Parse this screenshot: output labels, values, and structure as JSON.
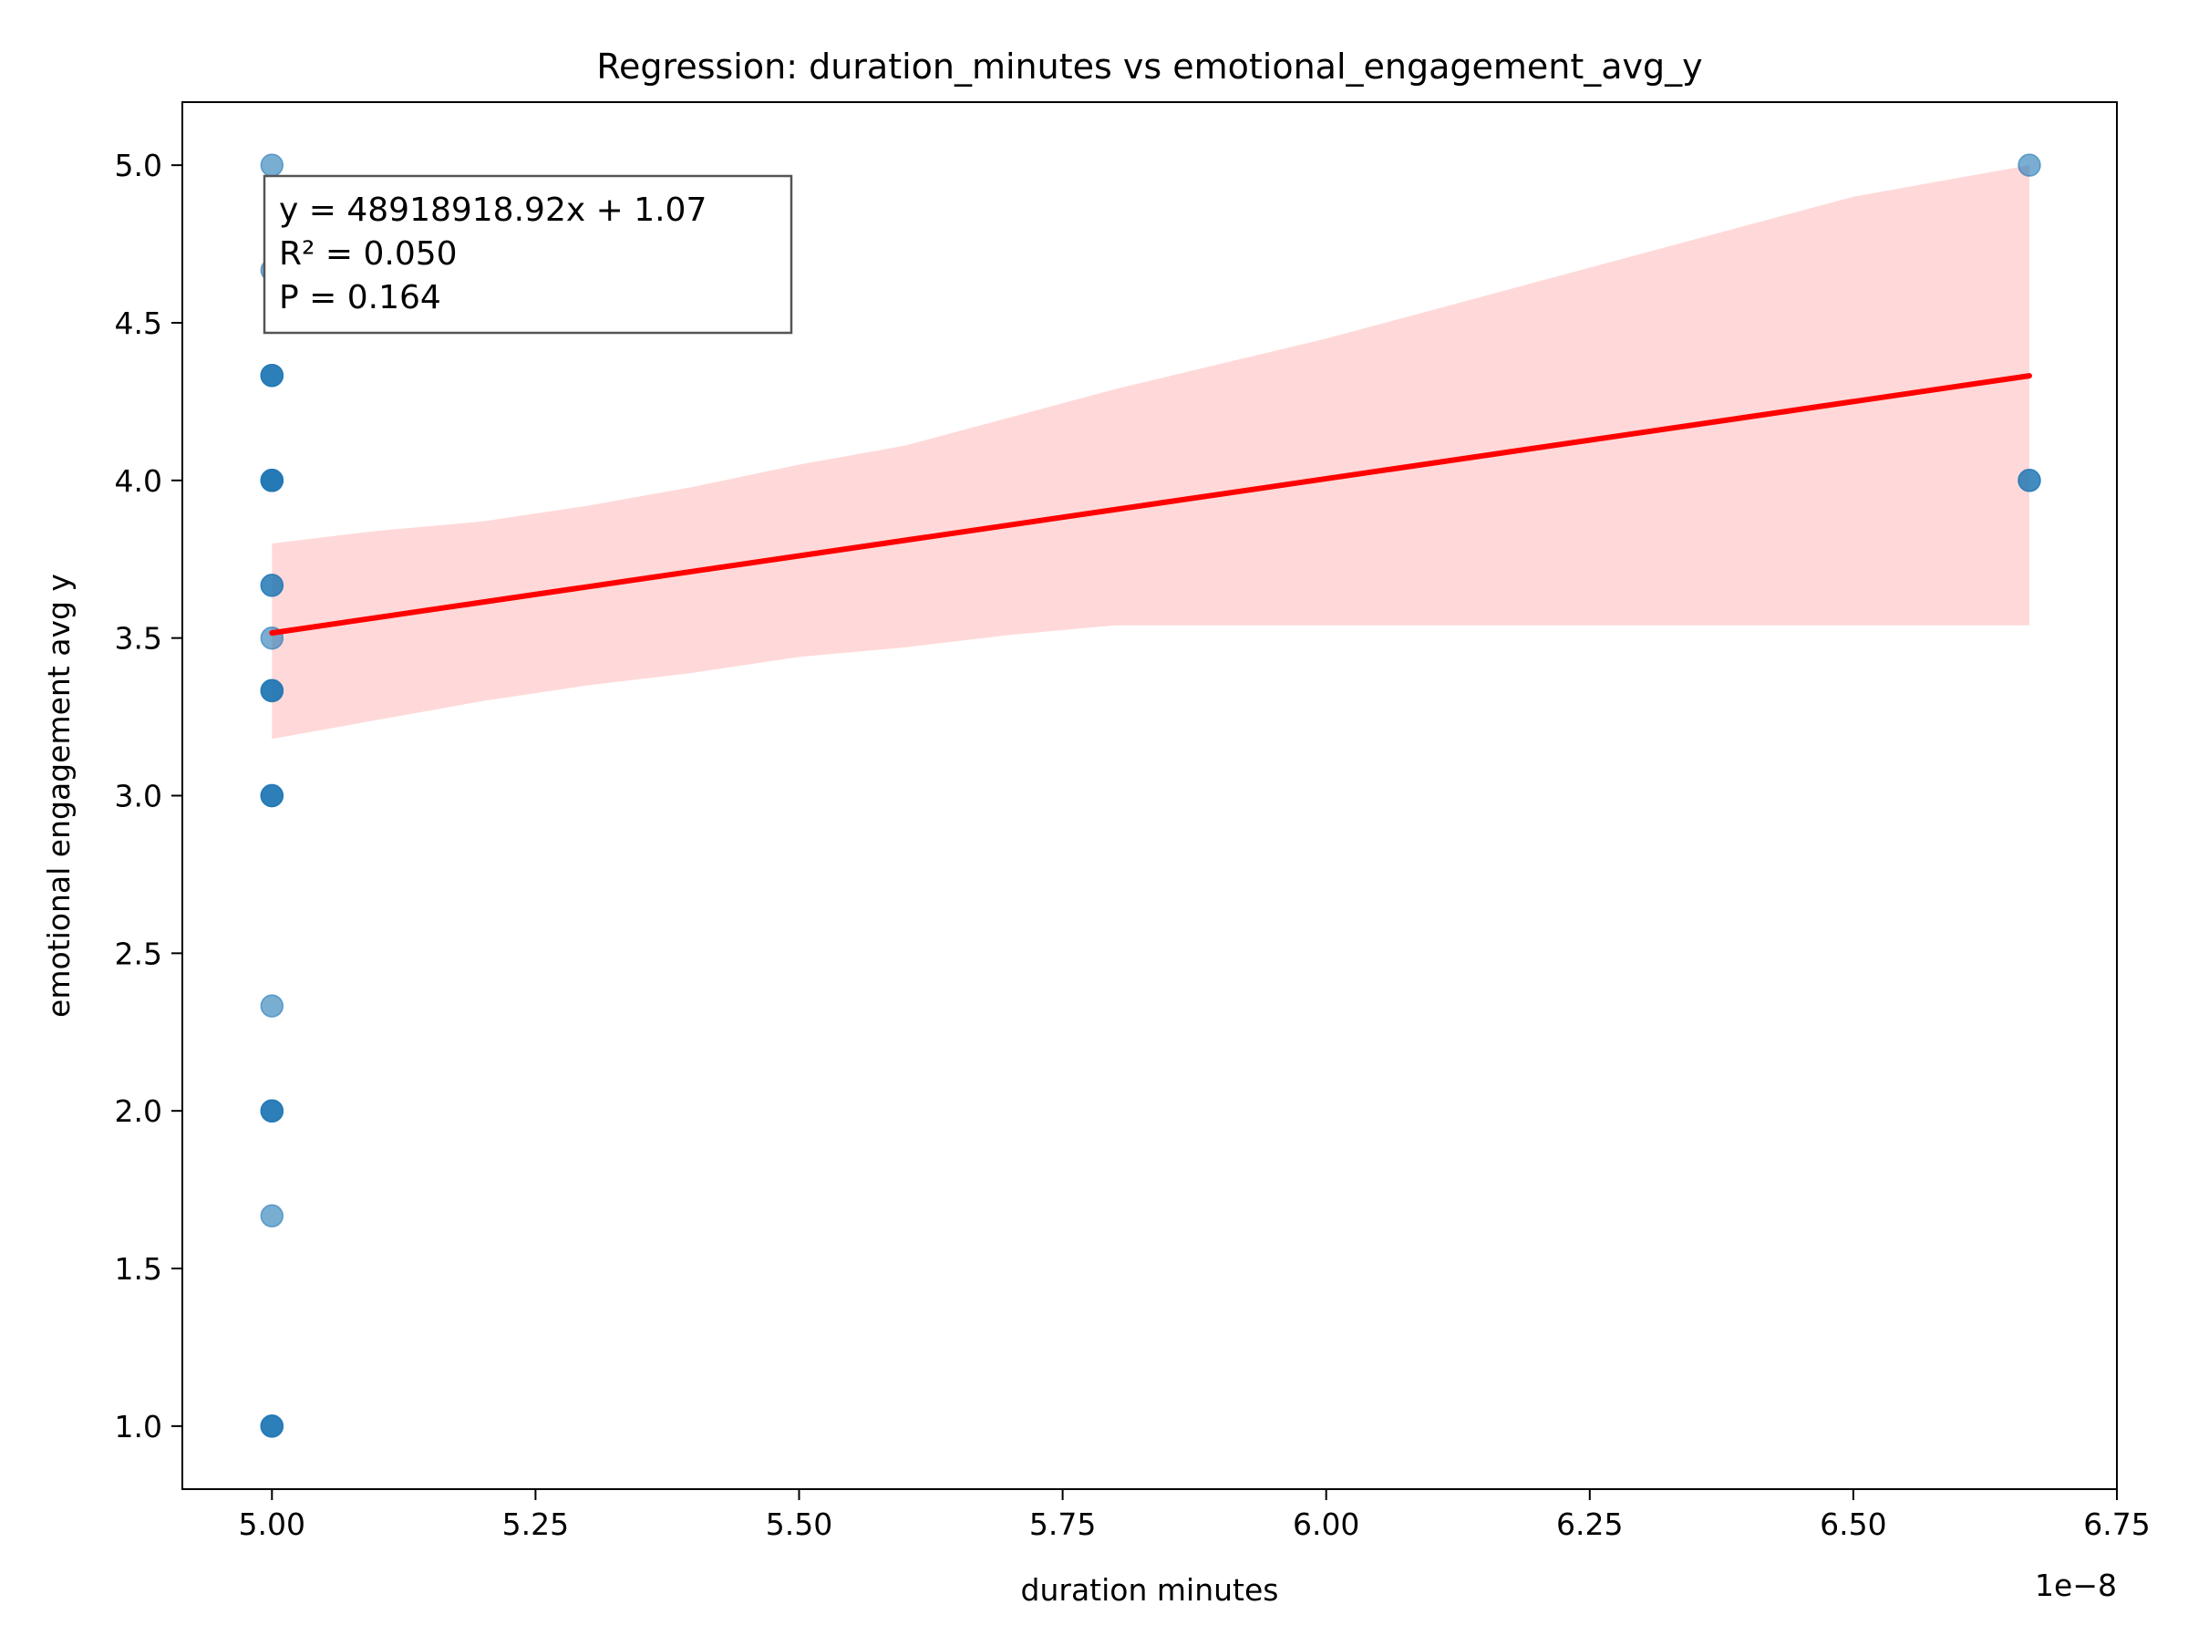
{
  "chart_data": {
    "type": "scatter",
    "title": "Regression: duration_minutes vs emotional_engagement_avg_y",
    "xlabel": "duration minutes",
    "ylabel": "emotional engagement avg y",
    "x_offset_label": "1e−8",
    "x_scale": 1e-08,
    "xlim": [
      4.915,
      6.75
    ],
    "ylim": [
      0.8,
      5.2
    ],
    "x_ticks": [
      5.0,
      5.25,
      5.5,
      5.75,
      6.0,
      6.25,
      6.5,
      6.75
    ],
    "x_tick_labels": [
      "5.00",
      "5.25",
      "5.50",
      "5.75",
      "6.00",
      "6.25",
      "6.50",
      "6.75"
    ],
    "y_ticks": [
      1.0,
      1.5,
      2.0,
      2.5,
      3.0,
      3.5,
      4.0,
      4.5,
      5.0
    ],
    "y_tick_labels": [
      "1.0",
      "1.5",
      "2.0",
      "2.5",
      "3.0",
      "3.5",
      "4.0",
      "4.5",
      "5.0"
    ],
    "grid": false,
    "series": [
      {
        "type": "scatter",
        "color": "#1f77b4",
        "points": [
          {
            "x": 5.0,
            "y": 5.0
          },
          {
            "x": 5.0,
            "y": 4.667
          },
          {
            "x": 5.0,
            "y": 4.333
          },
          {
            "x": 5.0,
            "y": 4.333
          },
          {
            "x": 5.0,
            "y": 4.333
          },
          {
            "x": 5.0,
            "y": 4.0
          },
          {
            "x": 5.0,
            "y": 4.0
          },
          {
            "x": 5.0,
            "y": 4.0
          },
          {
            "x": 5.0,
            "y": 4.0
          },
          {
            "x": 5.0,
            "y": 3.667
          },
          {
            "x": 5.0,
            "y": 3.667
          },
          {
            "x": 5.0,
            "y": 3.5
          },
          {
            "x": 5.0,
            "y": 3.333
          },
          {
            "x": 5.0,
            "y": 3.333
          },
          {
            "x": 5.0,
            "y": 3.333
          },
          {
            "x": 5.0,
            "y": 3.0
          },
          {
            "x": 5.0,
            "y": 3.0
          },
          {
            "x": 5.0,
            "y": 3.0
          },
          {
            "x": 5.0,
            "y": 2.333
          },
          {
            "x": 5.0,
            "y": 2.0
          },
          {
            "x": 5.0,
            "y": 2.0
          },
          {
            "x": 5.0,
            "y": 2.0
          },
          {
            "x": 5.0,
            "y": 1.667
          },
          {
            "x": 5.0,
            "y": 1.0
          },
          {
            "x": 5.0,
            "y": 1.0
          },
          {
            "x": 5.0,
            "y": 1.0
          },
          {
            "x": 6.667,
            "y": 5.0
          },
          {
            "x": 6.667,
            "y": 4.0
          },
          {
            "x": 6.667,
            "y": 4.0
          }
        ]
      },
      {
        "type": "line",
        "color": "#ff0000",
        "points": [
          {
            "x": 5.0,
            "y": 3.516
          },
          {
            "x": 6.667,
            "y": 4.332
          }
        ]
      },
      {
        "type": "area",
        "color": "#ff0000",
        "upper": [
          {
            "x": 5.0,
            "y": 3.8
          },
          {
            "x": 5.1,
            "y": 3.84
          },
          {
            "x": 5.2,
            "y": 3.87
          },
          {
            "x": 5.3,
            "y": 3.92
          },
          {
            "x": 5.4,
            "y": 3.98
          },
          {
            "x": 5.5,
            "y": 4.05
          },
          {
            "x": 5.6,
            "y": 4.11
          },
          {
            "x": 5.7,
            "y": 4.2
          },
          {
            "x": 5.8,
            "y": 4.29
          },
          {
            "x": 5.9,
            "y": 4.37
          },
          {
            "x": 6.0,
            "y": 4.45
          },
          {
            "x": 6.1,
            "y": 4.54
          },
          {
            "x": 6.2,
            "y": 4.63
          },
          {
            "x": 6.3,
            "y": 4.72
          },
          {
            "x": 6.4,
            "y": 4.81
          },
          {
            "x": 6.5,
            "y": 4.9
          },
          {
            "x": 6.667,
            "y": 5.0
          }
        ],
        "lower": [
          {
            "x": 5.0,
            "y": 3.18
          },
          {
            "x": 5.1,
            "y": 3.24
          },
          {
            "x": 5.2,
            "y": 3.3
          },
          {
            "x": 5.3,
            "y": 3.35
          },
          {
            "x": 5.4,
            "y": 3.39
          },
          {
            "x": 5.5,
            "y": 3.44
          },
          {
            "x": 5.6,
            "y": 3.47
          },
          {
            "x": 5.7,
            "y": 3.51
          },
          {
            "x": 5.8,
            "y": 3.54
          },
          {
            "x": 5.9,
            "y": 3.54
          },
          {
            "x": 6.0,
            "y": 3.54
          },
          {
            "x": 6.1,
            "y": 3.54
          },
          {
            "x": 6.2,
            "y": 3.54
          },
          {
            "x": 6.3,
            "y": 3.54
          },
          {
            "x": 6.4,
            "y": 3.54
          },
          {
            "x": 6.5,
            "y": 3.54
          },
          {
            "x": 6.667,
            "y": 3.54
          }
        ]
      }
    ],
    "annotation": {
      "lines": [
        "y = 48918918.92x + 1.07",
        "R² = 0.050",
        "P = 0.164"
      ],
      "placement": "top-left"
    }
  }
}
